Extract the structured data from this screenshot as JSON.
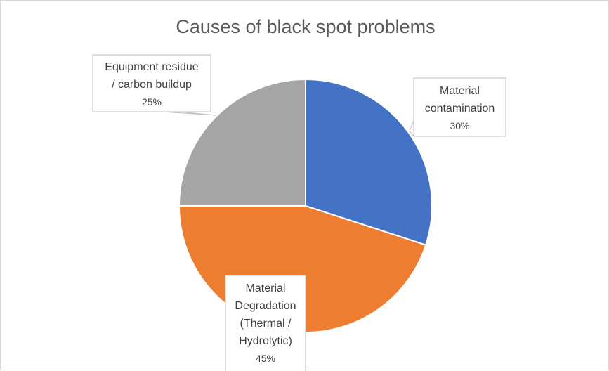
{
  "chart_data": {
    "type": "pie",
    "title": "Causes of black spot problems",
    "slices": [
      {
        "name": "Material contamination",
        "label_lines": [
          "Material",
          "contamination"
        ],
        "value": 30,
        "value_label": "30%",
        "color": "#4472C4"
      },
      {
        "name": "Material Degradation (Thermal / Hydrolytic)",
        "label_lines": [
          "Material",
          "Degradation",
          "(Thermal /",
          "Hydrolytic)"
        ],
        "value": 45,
        "value_label": "45%",
        "color": "#ED7D31"
      },
      {
        "name": "Equipment residue / carbon buildup",
        "label_lines": [
          "Equipment residue",
          "/ carbon buildup"
        ],
        "value": 25,
        "value_label": "25%",
        "color": "#A5A5A5"
      }
    ],
    "start_angle_deg": 0,
    "direction": "clockwise",
    "legend": "none",
    "data_labels": "callouts"
  }
}
